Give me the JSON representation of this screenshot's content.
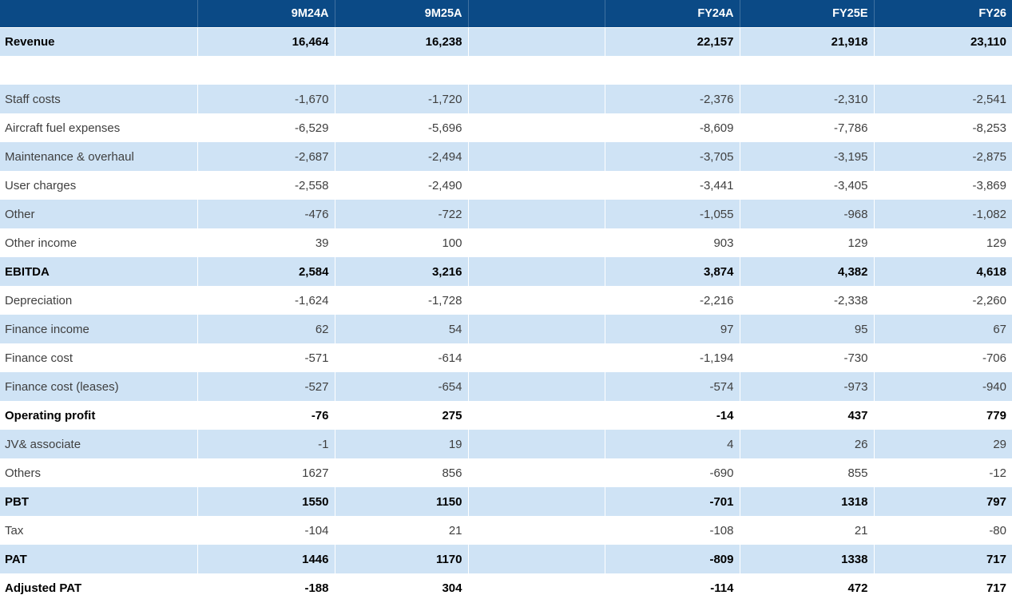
{
  "chart_data": {
    "type": "table",
    "columns": [
      "",
      "9M24A",
      "9M25A",
      "",
      "FY24A",
      "FY25E",
      "FY26"
    ],
    "rows": [
      {
        "label": "Revenue",
        "bold": true,
        "values": [
          "16,464",
          "16,238",
          "22,157",
          "21,918",
          "23,110"
        ]
      },
      {
        "label": "",
        "bold": false,
        "values": [
          "",
          "",
          "",
          "",
          ""
        ]
      },
      {
        "label": "Staff costs",
        "bold": false,
        "values": [
          "-1,670",
          "-1,720",
          "-2,376",
          "-2,310",
          "-2,541"
        ]
      },
      {
        "label": "Aircraft fuel expenses",
        "bold": false,
        "values": [
          "-6,529",
          "-5,696",
          "-8,609",
          "-7,786",
          "-8,253"
        ]
      },
      {
        "label": "Maintenance & overhaul",
        "bold": false,
        "values": [
          "-2,687",
          "-2,494",
          "-3,705",
          "-3,195",
          "-2,875"
        ]
      },
      {
        "label": "User charges",
        "bold": false,
        "values": [
          "-2,558",
          "-2,490",
          "-3,441",
          "-3,405",
          "-3,869"
        ]
      },
      {
        "label": "Other",
        "bold": false,
        "values": [
          "-476",
          "-722",
          "-1,055",
          "-968",
          "-1,082"
        ]
      },
      {
        "label": "Other income",
        "bold": false,
        "values": [
          "39",
          "100",
          "903",
          "129",
          "129"
        ]
      },
      {
        "label": "EBITDA",
        "bold": true,
        "values": [
          "2,584",
          "3,216",
          "3,874",
          "4,382",
          "4,618"
        ]
      },
      {
        "label": "Depreciation",
        "bold": false,
        "values": [
          "-1,624",
          "-1,728",
          "-2,216",
          "-2,338",
          "-2,260"
        ]
      },
      {
        "label": "Finance income",
        "bold": false,
        "values": [
          "62",
          "54",
          "97",
          "95",
          "67"
        ]
      },
      {
        "label": "Finance cost",
        "bold": false,
        "values": [
          "-571",
          "-614",
          "-1,194",
          "-730",
          "-706"
        ]
      },
      {
        "label": "Finance cost (leases)",
        "bold": false,
        "values": [
          "-527",
          "-654",
          "-574",
          "-973",
          "-940"
        ]
      },
      {
        "label": "Operating profit",
        "bold": true,
        "values": [
          "-76",
          "275",
          "-14",
          "437",
          "779"
        ]
      },
      {
        "label": "JV& associate",
        "bold": false,
        "values": [
          "-1",
          "19",
          "4",
          "26",
          "29"
        ]
      },
      {
        "label": "Others",
        "bold": false,
        "values": [
          "1627",
          "856",
          "-690",
          "855",
          "-12"
        ]
      },
      {
        "label": "PBT",
        "bold": true,
        "values": [
          "1550",
          "1150",
          "-701",
          "1318",
          "797"
        ]
      },
      {
        "label": "Tax",
        "bold": false,
        "values": [
          "-104",
          "21",
          "-108",
          "21",
          "-80"
        ]
      },
      {
        "label": "PAT",
        "bold": true,
        "values": [
          "1446",
          "1170",
          "-809",
          "1338",
          "717"
        ]
      },
      {
        "label": "Adjusted PAT",
        "bold": true,
        "values": [
          "-188",
          "304",
          "-114",
          "472",
          "717"
        ]
      }
    ]
  },
  "colors": {
    "header_bg": "#0B4A86",
    "row_stripe": "#CFE3F5",
    "header_text": "#FFFFFF",
    "body_text": "#3F3F3F",
    "emphasis_text": "#000000"
  }
}
